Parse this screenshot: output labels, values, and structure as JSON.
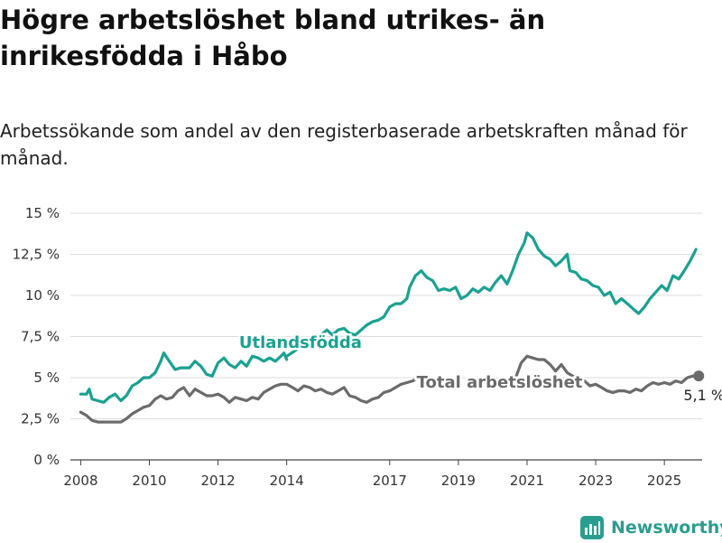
{
  "header": {
    "title": "Högre arbetslöshet bland utrikes- än inrikesfödda i Håbo",
    "subtitle": "Arbetssökande som andel av den registerbaserade arbetskraften månad för månad."
  },
  "brand": {
    "name": "Newsworthy",
    "icon": "bar-chart-logo-icon",
    "color": "#2a9d8f"
  },
  "chart_data": {
    "type": "line",
    "title": "Högre arbetslöshet bland utrikes- än inrikesfödda i Håbo",
    "subtitle": "Arbetssökande som andel av den registerbaserade arbetskraften månad för månad.",
    "xlabel": "",
    "ylabel": "",
    "ylim": [
      0,
      15
    ],
    "xlim": [
      2007.7,
      2026.1
    ],
    "y_ticks": [
      0,
      2.5,
      5,
      7.5,
      10,
      12.5,
      15
    ],
    "y_tick_labels": [
      "0 %",
      "2,5 %",
      "5 %",
      "7,5 %",
      "10 %",
      "12,5 %",
      "15 %"
    ],
    "x_ticks": [
      2008,
      2010,
      2012,
      2014,
      2017,
      2019,
      2021,
      2023,
      2025
    ],
    "x_tick_labels": [
      "2008",
      "2010",
      "2012",
      "2014",
      "2017",
      "2019",
      "2021",
      "2023",
      "2025"
    ],
    "grid": "horizontal",
    "end_label": "5,1 %",
    "series": [
      {
        "name": "Utlandsfödda",
        "color": "#1aa190",
        "points": [
          [
            2008.0,
            4.0
          ],
          [
            2008.17,
            4.0
          ],
          [
            2008.25,
            4.3
          ],
          [
            2008.33,
            3.7
          ],
          [
            2008.5,
            3.6
          ],
          [
            2008.67,
            3.5
          ],
          [
            2008.83,
            3.8
          ],
          [
            2009.0,
            4.0
          ],
          [
            2009.17,
            3.6
          ],
          [
            2009.33,
            3.9
          ],
          [
            2009.5,
            4.5
          ],
          [
            2009.67,
            4.7
          ],
          [
            2009.83,
            5.0
          ],
          [
            2010.0,
            5.0
          ],
          [
            2010.17,
            5.3
          ],
          [
            2010.33,
            6.0
          ],
          [
            2010.42,
            6.5
          ],
          [
            2010.58,
            6.0
          ],
          [
            2010.75,
            5.5
          ],
          [
            2010.92,
            5.6
          ],
          [
            2011.17,
            5.6
          ],
          [
            2011.33,
            6.0
          ],
          [
            2011.5,
            5.7
          ],
          [
            2011.67,
            5.2
          ],
          [
            2011.83,
            5.1
          ],
          [
            2012.0,
            5.9
          ],
          [
            2012.17,
            6.2
          ],
          [
            2012.33,
            5.8
          ],
          [
            2012.5,
            5.6
          ],
          [
            2012.67,
            6.0
          ],
          [
            2012.83,
            5.7
          ],
          [
            2013.0,
            6.3
          ],
          [
            2013.17,
            6.2
          ],
          [
            2013.33,
            6.0
          ],
          [
            2013.5,
            6.2
          ],
          [
            2013.67,
            6.0
          ],
          [
            2013.83,
            6.3
          ],
          [
            2013.92,
            6.5
          ],
          [
            2014.0,
            6.1
          ]
        ]
      },
      {
        "name": "Utlandsfödda (cont.)",
        "color": "#1aa190",
        "points": [
          [
            2014.0,
            6.3
          ],
          [
            2014.5,
            7.0
          ],
          [
            2014.75,
            7.4
          ],
          [
            2015.0,
            7.6
          ],
          [
            2015.17,
            7.9
          ],
          [
            2015.33,
            7.6
          ],
          [
            2015.5,
            7.9
          ],
          [
            2015.67,
            8.0
          ],
          [
            2015.83,
            7.7
          ],
          [
            2016.0,
            7.6
          ],
          [
            2016.17,
            7.9
          ],
          [
            2016.33,
            8.2
          ],
          [
            2016.5,
            8.4
          ],
          [
            2016.67,
            8.5
          ],
          [
            2016.83,
            8.7
          ],
          [
            2017.0,
            9.3
          ],
          [
            2017.17,
            9.5
          ],
          [
            2017.33,
            9.5
          ],
          [
            2017.5,
            9.8
          ],
          [
            2017.58,
            10.5
          ],
          [
            2017.75,
            11.2
          ],
          [
            2017.92,
            11.5
          ],
          [
            2018.08,
            11.1
          ],
          [
            2018.25,
            10.9
          ],
          [
            2018.42,
            10.3
          ],
          [
            2018.58,
            10.4
          ],
          [
            2018.75,
            10.3
          ],
          [
            2018.92,
            10.5
          ],
          [
            2019.08,
            9.8
          ],
          [
            2019.25,
            10.0
          ],
          [
            2019.42,
            10.4
          ],
          [
            2019.58,
            10.2
          ],
          [
            2019.75,
            10.5
          ],
          [
            2019.92,
            10.3
          ],
          [
            2020.08,
            10.8
          ],
          [
            2020.25,
            11.2
          ],
          [
            2020.42,
            10.7
          ],
          [
            2020.58,
            11.5
          ],
          [
            2020.75,
            12.5
          ],
          [
            2020.92,
            13.2
          ],
          [
            2021.0,
            13.8
          ],
          [
            2021.17,
            13.5
          ],
          [
            2021.33,
            12.8
          ],
          [
            2021.5,
            12.4
          ],
          [
            2021.67,
            12.2
          ],
          [
            2021.83,
            11.8
          ],
          [
            2022.0,
            12.1
          ],
          [
            2022.17,
            12.5
          ],
          [
            2022.25,
            11.5
          ],
          [
            2022.42,
            11.4
          ],
          [
            2022.58,
            11.0
          ],
          [
            2022.75,
            10.9
          ],
          [
            2022.92,
            10.6
          ],
          [
            2023.08,
            10.5
          ],
          [
            2023.25,
            10.0
          ],
          [
            2023.42,
            10.2
          ],
          [
            2023.58,
            9.5
          ],
          [
            2023.75,
            9.8
          ],
          [
            2023.92,
            9.5
          ],
          [
            2024.08,
            9.2
          ],
          [
            2024.25,
            8.9
          ],
          [
            2024.42,
            9.3
          ],
          [
            2024.58,
            9.8
          ],
          [
            2024.75,
            10.2
          ],
          [
            2024.92,
            10.6
          ],
          [
            2025.08,
            10.3
          ],
          [
            2025.25,
            11.2
          ],
          [
            2025.42,
            11.0
          ],
          [
            2025.58,
            11.5
          ],
          [
            2025.75,
            12.1
          ],
          [
            2025.92,
            12.8
          ]
        ]
      },
      {
        "name": "Total arbetslöshet",
        "color": "#6b6b6b",
        "points": [
          [
            2008.0,
            2.9
          ],
          [
            2008.17,
            2.7
          ],
          [
            2008.33,
            2.4
          ],
          [
            2008.5,
            2.3
          ],
          [
            2008.67,
            2.3
          ],
          [
            2008.83,
            2.3
          ],
          [
            2009.0,
            2.3
          ],
          [
            2009.17,
            2.3
          ],
          [
            2009.33,
            2.5
          ],
          [
            2009.5,
            2.8
          ],
          [
            2009.67,
            3.0
          ],
          [
            2009.83,
            3.2
          ],
          [
            2010.0,
            3.3
          ],
          [
            2010.17,
            3.7
          ],
          [
            2010.33,
            3.9
          ],
          [
            2010.5,
            3.7
          ],
          [
            2010.67,
            3.8
          ],
          [
            2010.83,
            4.2
          ],
          [
            2011.0,
            4.4
          ],
          [
            2011.17,
            3.9
          ],
          [
            2011.33,
            4.3
          ],
          [
            2011.5,
            4.1
          ],
          [
            2011.67,
            3.9
          ],
          [
            2011.83,
            3.9
          ],
          [
            2012.0,
            4.0
          ],
          [
            2012.17,
            3.8
          ],
          [
            2012.33,
            3.5
          ],
          [
            2012.5,
            3.8
          ],
          [
            2012.67,
            3.7
          ],
          [
            2012.83,
            3.6
          ],
          [
            2013.0,
            3.8
          ],
          [
            2013.17,
            3.7
          ],
          [
            2013.33,
            4.1
          ],
          [
            2013.5,
            4.3
          ],
          [
            2013.67,
            4.5
          ],
          [
            2013.83,
            4.6
          ],
          [
            2014.0,
            4.6
          ],
          [
            2014.17,
            4.4
          ],
          [
            2014.33,
            4.2
          ],
          [
            2014.5,
            4.5
          ],
          [
            2014.67,
            4.4
          ],
          [
            2014.83,
            4.2
          ],
          [
            2015.0,
            4.3
          ],
          [
            2015.17,
            4.1
          ],
          [
            2015.33,
            4.0
          ],
          [
            2015.5,
            4.2
          ],
          [
            2015.67,
            4.4
          ],
          [
            2015.83,
            3.9
          ],
          [
            2016.0,
            3.8
          ],
          [
            2016.17,
            3.6
          ],
          [
            2016.33,
            3.5
          ],
          [
            2016.5,
            3.7
          ],
          [
            2016.67,
            3.8
          ],
          [
            2016.83,
            4.1
          ],
          [
            2017.0,
            4.2
          ],
          [
            2017.17,
            4.4
          ],
          [
            2017.33,
            4.6
          ],
          [
            2017.5,
            4.7
          ],
          [
            2017.67,
            4.8
          ],
          [
            2017.83,
            5.0
          ]
        ]
      },
      {
        "name": "Total arbetslöshet (cont.)",
        "color": "#6b6b6b",
        "points": [
          [
            2020.67,
            5.0
          ],
          [
            2020.83,
            5.9
          ],
          [
            2021.0,
            6.3
          ],
          [
            2021.17,
            6.2
          ],
          [
            2021.33,
            6.1
          ],
          [
            2021.5,
            6.1
          ],
          [
            2021.67,
            5.8
          ],
          [
            2021.83,
            5.4
          ],
          [
            2022.0,
            5.8
          ],
          [
            2022.17,
            5.3
          ],
          [
            2022.33,
            5.1
          ],
          [
            2022.5,
            4.9
          ],
          [
            2022.67,
            4.8
          ],
          [
            2022.83,
            4.5
          ],
          [
            2023.0,
            4.6
          ],
          [
            2023.17,
            4.4
          ],
          [
            2023.33,
            4.2
          ],
          [
            2023.5,
            4.1
          ],
          [
            2023.67,
            4.2
          ],
          [
            2023.83,
            4.2
          ],
          [
            2024.0,
            4.1
          ],
          [
            2024.17,
            4.3
          ],
          [
            2024.33,
            4.2
          ],
          [
            2024.5,
            4.5
          ],
          [
            2024.67,
            4.7
          ],
          [
            2024.83,
            4.6
          ],
          [
            2025.0,
            4.7
          ],
          [
            2025.17,
            4.6
          ],
          [
            2025.33,
            4.8
          ],
          [
            2025.5,
            4.7
          ],
          [
            2025.67,
            5.0
          ],
          [
            2025.83,
            5.1
          ],
          [
            2026.0,
            5.1
          ]
        ]
      }
    ],
    "annotations": [
      {
        "text": "Utlandsfödda",
        "x": 2014.4,
        "y": 6.8,
        "color": "#1aa190"
      },
      {
        "text": "Total arbetslöshet",
        "x": 2020.2,
        "y": 4.4,
        "color": "#6b6b6b"
      }
    ]
  }
}
